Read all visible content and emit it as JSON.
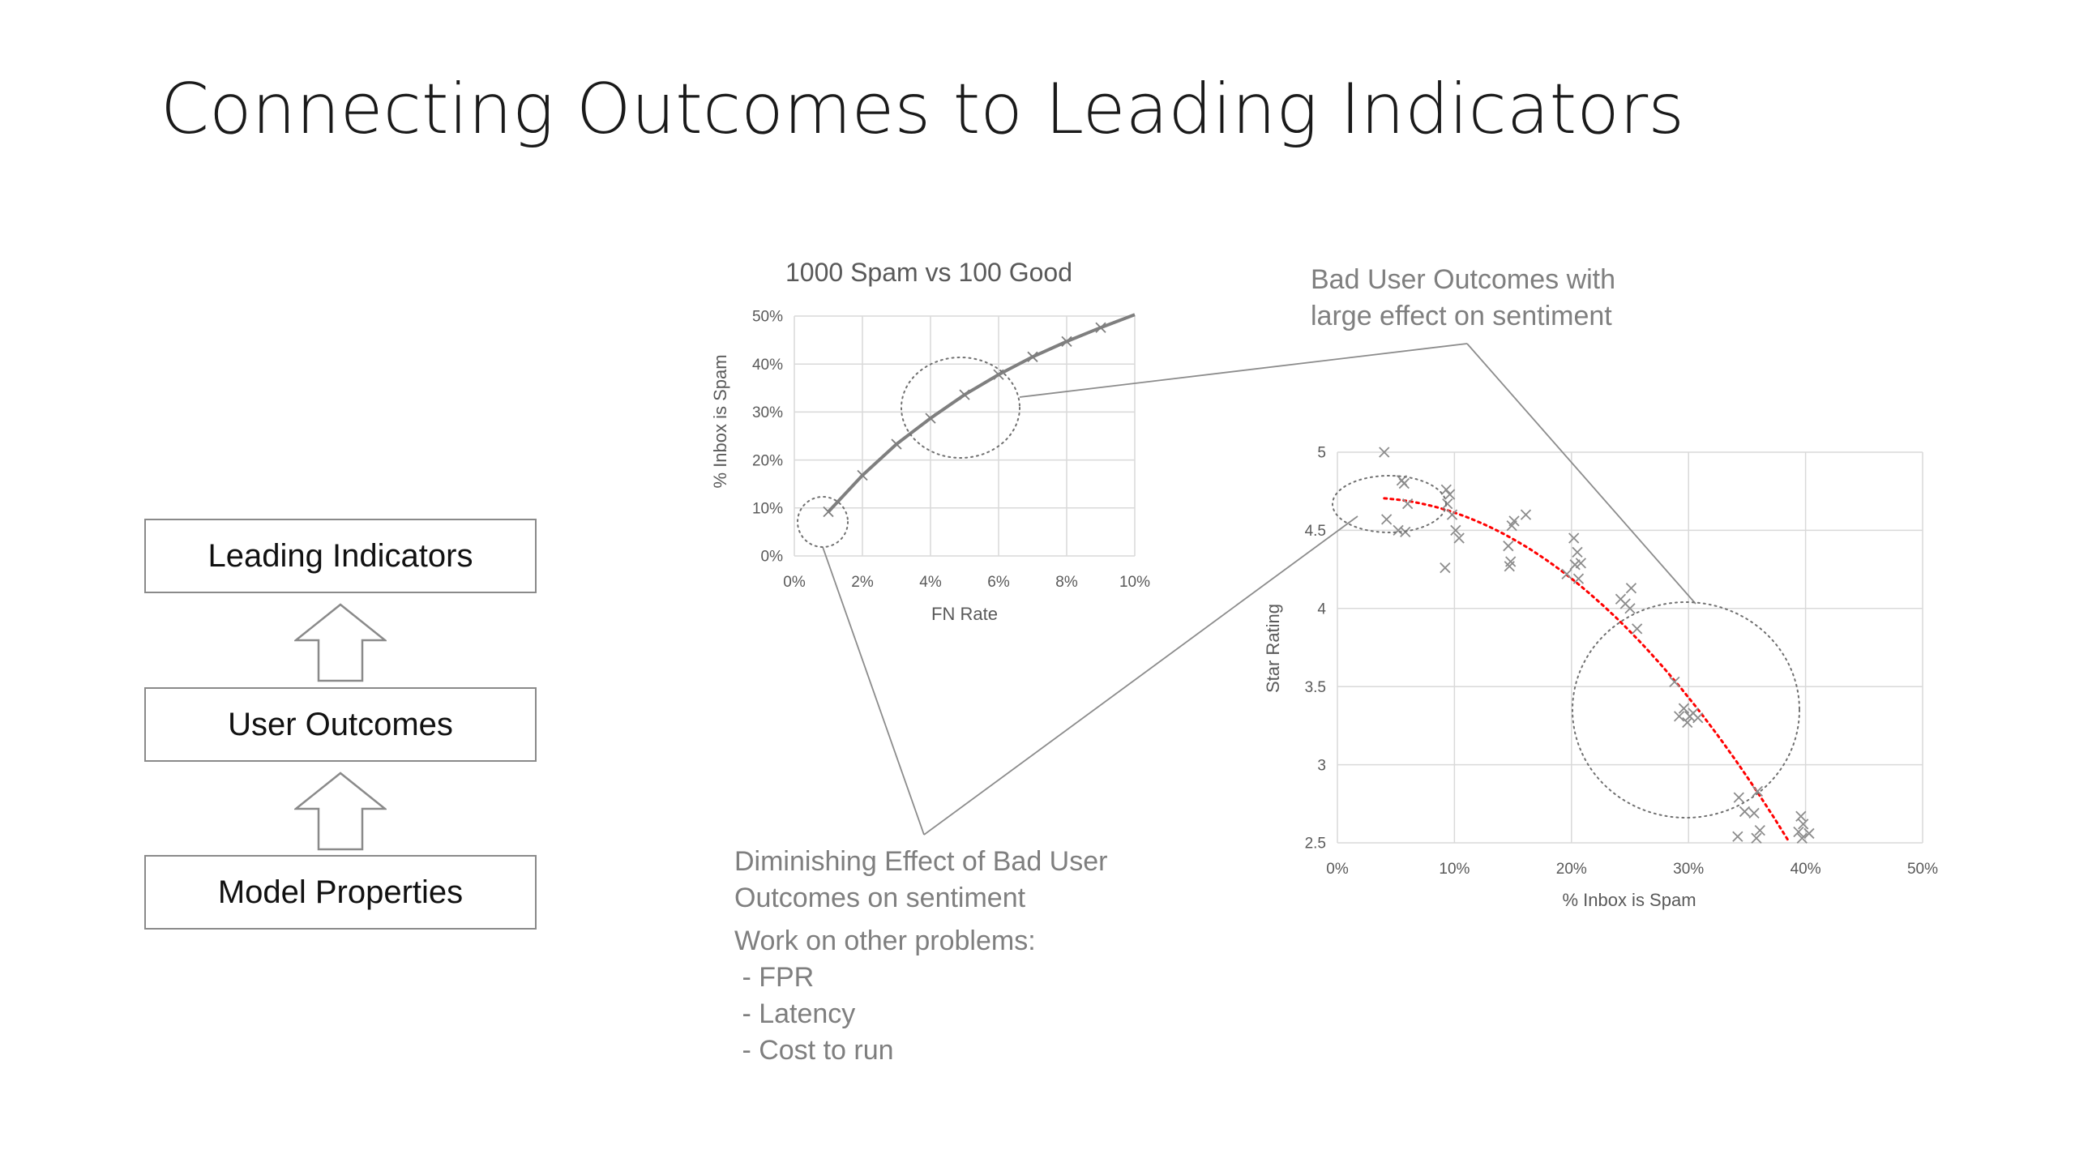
{
  "slide": {
    "title": "Connecting Outcomes to Leading Indicators"
  },
  "hierarchy": {
    "boxes": [
      "Leading Indicators",
      "User Outcomes",
      "Model Properties"
    ]
  },
  "callouts": {
    "bad_outcomes": [
      "Bad User Outcomes with",
      "large effect on sentiment"
    ],
    "diminishing": [
      "Diminishing Effect of Bad User",
      "Outcomes on sentiment"
    ],
    "work_heading": "Work on other problems:",
    "work_items": [
      "FPR",
      "Latency",
      "Cost to run"
    ]
  },
  "chart_data": [
    {
      "type": "line",
      "title": "1000 Spam vs 100 Good",
      "xlabel": "FN Rate",
      "ylabel": "% Inbox is Spam",
      "xlim": [
        0,
        10
      ],
      "ylim": [
        0,
        50
      ],
      "x_ticks": [
        "0%",
        "2%",
        "4%",
        "6%",
        "8%",
        "10%"
      ],
      "y_ticks": [
        "0%",
        "10%",
        "20%",
        "30%",
        "40%",
        "50%"
      ],
      "grid": true,
      "markers": "x",
      "series": [
        {
          "x": [
            1,
            2,
            3,
            4,
            5,
            6,
            7,
            8,
            9,
            10
          ],
          "y": [
            9.2,
            16.8,
            23.3,
            28.7,
            33.6,
            37.8,
            41.5,
            44.7,
            47.6,
            50.3
          ]
        }
      ],
      "line_color": "#7f7f7f"
    },
    {
      "type": "scatter",
      "xlabel": "% Inbox is Spam",
      "ylabel": "Star Rating",
      "xlim": [
        0,
        50
      ],
      "ylim": [
        2.5,
        5
      ],
      "x_ticks": [
        "0%",
        "10%",
        "20%",
        "30%",
        "40%",
        "50%"
      ],
      "y_ticks": [
        "2.5",
        "3",
        "3.5",
        "4",
        "4.5",
        "5"
      ],
      "grid": true,
      "markers": "x",
      "points": [
        [
          4,
          5.0
        ],
        [
          5.5,
          4.82
        ],
        [
          5.7,
          4.8
        ],
        [
          6,
          4.67
        ],
        [
          4.2,
          4.57
        ],
        [
          5.2,
          4.5
        ],
        [
          5.8,
          4.49
        ],
        [
          9.3,
          4.76
        ],
        [
          9.6,
          4.73
        ],
        [
          9.4,
          4.67
        ],
        [
          9.8,
          4.6
        ],
        [
          10.1,
          4.5
        ],
        [
          10.4,
          4.45
        ],
        [
          9.2,
          4.26
        ],
        [
          15.1,
          4.56
        ],
        [
          14.9,
          4.53
        ],
        [
          16.1,
          4.6
        ],
        [
          14.6,
          4.4
        ],
        [
          14.8,
          4.3
        ],
        [
          14.7,
          4.27
        ],
        [
          20.2,
          4.45
        ],
        [
          20.5,
          4.36
        ],
        [
          20.8,
          4.29
        ],
        [
          20.3,
          4.28
        ],
        [
          19.6,
          4.22
        ],
        [
          20.6,
          4.19
        ],
        [
          25.1,
          4.13
        ],
        [
          24.2,
          4.06
        ],
        [
          24.6,
          4.03
        ],
        [
          25.0,
          4.0
        ],
        [
          25.6,
          3.87
        ],
        [
          28.8,
          3.53
        ],
        [
          29.6,
          3.36
        ],
        [
          30.4,
          3.33
        ],
        [
          29.2,
          3.31
        ],
        [
          30.1,
          3.31
        ],
        [
          30.8,
          3.3
        ],
        [
          29.9,
          3.27
        ],
        [
          34.3,
          2.79
        ],
        [
          35.9,
          2.83
        ],
        [
          34.8,
          2.7
        ],
        [
          35.6,
          2.69
        ],
        [
          36.1,
          2.58
        ],
        [
          34.2,
          2.54
        ],
        [
          35.8,
          2.53
        ],
        [
          39.6,
          2.67
        ],
        [
          39.8,
          2.62
        ],
        [
          39.4,
          2.57
        ],
        [
          40.3,
          2.56
        ],
        [
          39.7,
          2.53
        ]
      ],
      "trendline": {
        "style": "dotted",
        "color": "#ff0000"
      }
    }
  ]
}
